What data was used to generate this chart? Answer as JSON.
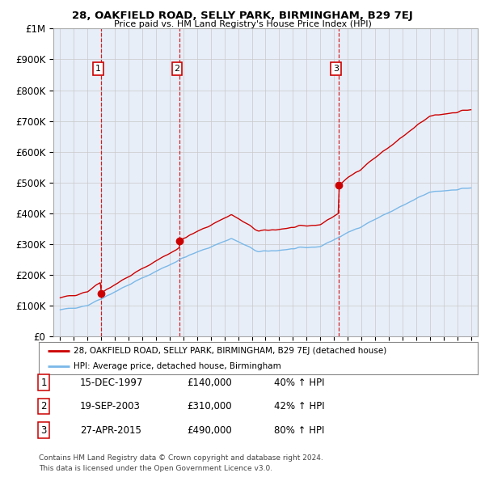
{
  "title1": "28, OAKFIELD ROAD, SELLY PARK, BIRMINGHAM, B29 7EJ",
  "title2": "Price paid vs. HM Land Registry's House Price Index (HPI)",
  "bg_color": "#ffffff",
  "plot_bg_color": "#e8eef8",
  "grid_color": "#c8c8c8",
  "sale_color": "#cc0000",
  "hpi_color": "#7ab8e8",
  "transaction_color": "#cc0000",
  "transactions": [
    {
      "date": 1997.96,
      "price": 140000,
      "label": "1"
    },
    {
      "date": 2003.72,
      "price": 310000,
      "label": "2"
    },
    {
      "date": 2015.32,
      "price": 490000,
      "label": "3"
    }
  ],
  "legend_line1": "28, OAKFIELD ROAD, SELLY PARK, BIRMINGHAM, B29 7EJ (detached house)",
  "legend_line2": "HPI: Average price, detached house, Birmingham",
  "table_rows": [
    {
      "num": "1",
      "date": "15-DEC-1997",
      "price": "£140,000",
      "change": "40% ↑ HPI"
    },
    {
      "num": "2",
      "date": "19-SEP-2003",
      "price": "£310,000",
      "change": "42% ↑ HPI"
    },
    {
      "num": "3",
      "date": "27-APR-2015",
      "price": "£490,000",
      "change": "80% ↑ HPI"
    }
  ],
  "footer1": "Contains HM Land Registry data © Crown copyright and database right 2024.",
  "footer2": "This data is licensed under the Open Government Licence v3.0.",
  "ylim_min": 0,
  "ylim_max": 1000000,
  "xlim_min": 1994.5,
  "xlim_max": 2025.5,
  "yticks": [
    0,
    100000,
    200000,
    300000,
    400000,
    500000,
    600000,
    700000,
    800000,
    900000,
    1000000
  ]
}
